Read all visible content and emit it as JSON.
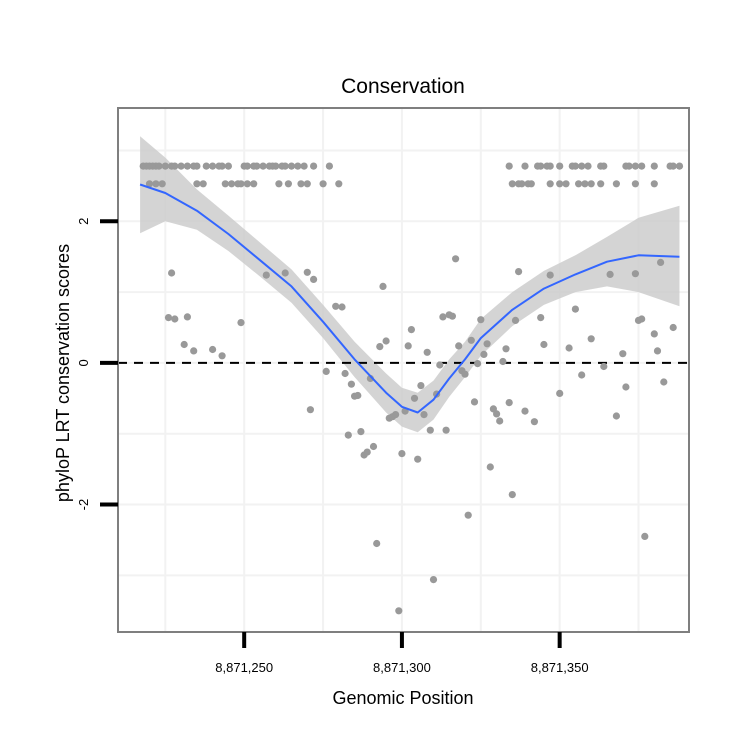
{
  "chart_data": {
    "type": "scatter",
    "title": "Conservation",
    "xlabel": "Genomic Position",
    "ylabel": "phyloP LRT conservation scores",
    "xlim": [
      8871210,
      8871391
    ],
    "ylim": [
      -3.8,
      3.6
    ],
    "x_ticks": [
      8871250,
      8871300,
      8871350
    ],
    "x_tick_labels": [
      "8,871,250",
      "8,871,300",
      "8,871,350"
    ],
    "y_ticks": [
      -2,
      0,
      2
    ],
    "y_tick_labels": [
      "-2",
      "0",
      "2"
    ],
    "grid": true,
    "reference_line": {
      "y": 0,
      "style": "dashed"
    },
    "colors": {
      "points": "#999999",
      "smooth": "#3366ff",
      "ribbon": "#cccccc",
      "panel_border": "#7f7f7f",
      "grid": "#f2f2f2",
      "reference_line": "#000000",
      "axis": "#000000"
    },
    "points": [
      {
        "x": 8871218,
        "y": 2.78
      },
      {
        "x": 8871219,
        "y": 2.78
      },
      {
        "x": 8871220,
        "y": 2.78
      },
      {
        "x": 8871221,
        "y": 2.78
      },
      {
        "x": 8871222,
        "y": 2.78
      },
      {
        "x": 8871223,
        "y": 2.78
      },
      {
        "x": 8871225,
        "y": 2.78
      },
      {
        "x": 8871227,
        "y": 2.78
      },
      {
        "x": 8871228,
        "y": 2.78
      },
      {
        "x": 8871230,
        "y": 2.78
      },
      {
        "x": 8871232,
        "y": 2.78
      },
      {
        "x": 8871234,
        "y": 2.78
      },
      {
        "x": 8871235,
        "y": 2.78
      },
      {
        "x": 8871238,
        "y": 2.78
      },
      {
        "x": 8871240,
        "y": 2.78
      },
      {
        "x": 8871242,
        "y": 2.78
      },
      {
        "x": 8871243,
        "y": 2.78
      },
      {
        "x": 8871245,
        "y": 2.78
      },
      {
        "x": 8871250,
        "y": 2.78
      },
      {
        "x": 8871251,
        "y": 2.78
      },
      {
        "x": 8871253,
        "y": 2.78
      },
      {
        "x": 8871254,
        "y": 2.78
      },
      {
        "x": 8871256,
        "y": 2.78
      },
      {
        "x": 8871258,
        "y": 2.78
      },
      {
        "x": 8871259,
        "y": 2.78
      },
      {
        "x": 8871260,
        "y": 2.78
      },
      {
        "x": 8871262,
        "y": 2.78
      },
      {
        "x": 8871263,
        "y": 2.78
      },
      {
        "x": 8871265,
        "y": 2.78
      },
      {
        "x": 8871267,
        "y": 2.78
      },
      {
        "x": 8871269,
        "y": 2.78
      },
      {
        "x": 8871272,
        "y": 2.78
      },
      {
        "x": 8871277,
        "y": 2.78
      },
      {
        "x": 8871220,
        "y": 2.53
      },
      {
        "x": 8871222,
        "y": 2.53
      },
      {
        "x": 8871224,
        "y": 2.53
      },
      {
        "x": 8871235,
        "y": 2.53
      },
      {
        "x": 8871237,
        "y": 2.53
      },
      {
        "x": 8871244,
        "y": 2.53
      },
      {
        "x": 8871246,
        "y": 2.53
      },
      {
        "x": 8871248,
        "y": 2.53
      },
      {
        "x": 8871249,
        "y": 2.53
      },
      {
        "x": 8871251,
        "y": 2.53
      },
      {
        "x": 8871253,
        "y": 2.53
      },
      {
        "x": 8871261,
        "y": 2.53
      },
      {
        "x": 8871264,
        "y": 2.53
      },
      {
        "x": 8871268,
        "y": 2.53
      },
      {
        "x": 8871270,
        "y": 2.53
      },
      {
        "x": 8871275,
        "y": 2.53
      },
      {
        "x": 8871280,
        "y": 2.53
      },
      {
        "x": 8871334,
        "y": 2.78
      },
      {
        "x": 8871339,
        "y": 2.78
      },
      {
        "x": 8871343,
        "y": 2.78
      },
      {
        "x": 8871344,
        "y": 2.78
      },
      {
        "x": 8871346,
        "y": 2.78
      },
      {
        "x": 8871347,
        "y": 2.78
      },
      {
        "x": 8871350,
        "y": 2.78
      },
      {
        "x": 8871354,
        "y": 2.78
      },
      {
        "x": 8871355,
        "y": 2.78
      },
      {
        "x": 8871357,
        "y": 2.78
      },
      {
        "x": 8871359,
        "y": 2.78
      },
      {
        "x": 8871363,
        "y": 2.78
      },
      {
        "x": 8871364,
        "y": 2.78
      },
      {
        "x": 8871371,
        "y": 2.78
      },
      {
        "x": 8871372,
        "y": 2.78
      },
      {
        "x": 8871374,
        "y": 2.78
      },
      {
        "x": 8871376,
        "y": 2.78
      },
      {
        "x": 8871380,
        "y": 2.78
      },
      {
        "x": 8871385,
        "y": 2.78
      },
      {
        "x": 8871386,
        "y": 2.78
      },
      {
        "x": 8871388,
        "y": 2.78
      },
      {
        "x": 8871335,
        "y": 2.53
      },
      {
        "x": 8871337,
        "y": 2.53
      },
      {
        "x": 8871338,
        "y": 2.53
      },
      {
        "x": 8871340,
        "y": 2.53
      },
      {
        "x": 8871341,
        "y": 2.53
      },
      {
        "x": 8871347,
        "y": 2.53
      },
      {
        "x": 8871350,
        "y": 2.53
      },
      {
        "x": 8871352,
        "y": 2.53
      },
      {
        "x": 8871356,
        "y": 2.53
      },
      {
        "x": 8871358,
        "y": 2.53
      },
      {
        "x": 8871360,
        "y": 2.53
      },
      {
        "x": 8871363,
        "y": 2.53
      },
      {
        "x": 8871368,
        "y": 2.53
      },
      {
        "x": 8871374,
        "y": 2.53
      },
      {
        "x": 8871380,
        "y": 2.53
      },
      {
        "x": 8871227,
        "y": 1.27
      },
      {
        "x": 8871226,
        "y": 0.64
      },
      {
        "x": 8871228,
        "y": 0.62
      },
      {
        "x": 8871232,
        "y": 0.65
      },
      {
        "x": 8871231,
        "y": 0.26
      },
      {
        "x": 8871234,
        "y": 0.17
      },
      {
        "x": 8871240,
        "y": 0.19
      },
      {
        "x": 8871243,
        "y": 0.1
      },
      {
        "x": 8871249,
        "y": 0.57
      },
      {
        "x": 8871257,
        "y": 1.24
      },
      {
        "x": 8871263,
        "y": 1.27
      },
      {
        "x": 8871270,
        "y": 1.28
      },
      {
        "x": 8871272,
        "y": 1.18
      },
      {
        "x": 8871276,
        "y": -0.12
      },
      {
        "x": 8871271,
        "y": -0.66
      },
      {
        "x": 8871279,
        "y": 0.8
      },
      {
        "x": 8871281,
        "y": 0.79
      },
      {
        "x": 8871282,
        "y": -0.15
      },
      {
        "x": 8871283,
        "y": -1.02
      },
      {
        "x": 8871284,
        "y": -0.3
      },
      {
        "x": 8871285,
        "y": -0.47
      },
      {
        "x": 8871286,
        "y": -0.46
      },
      {
        "x": 8871287,
        "y": -0.97
      },
      {
        "x": 8871288,
        "y": -1.3
      },
      {
        "x": 8871289,
        "y": -1.26
      },
      {
        "x": 8871290,
        "y": -0.22
      },
      {
        "x": 8871291,
        "y": -1.18
      },
      {
        "x": 8871292,
        "y": -2.55
      },
      {
        "x": 8871293,
        "y": 0.23
      },
      {
        "x": 8871294,
        "y": 1.08
      },
      {
        "x": 8871296,
        "y": -0.78
      },
      {
        "x": 8871297,
        "y": -0.76
      },
      {
        "x": 8871298,
        "y": -0.73
      },
      {
        "x": 8871299,
        "y": -3.5
      },
      {
        "x": 8871300,
        "y": -1.28
      },
      {
        "x": 8871301,
        "y": -0.68
      },
      {
        "x": 8871302,
        "y": 0.24
      },
      {
        "x": 8871303,
        "y": 0.47
      },
      {
        "x": 8871295,
        "y": 0.31
      },
      {
        "x": 8871304,
        "y": -0.5
      },
      {
        "x": 8871305,
        "y": -1.36
      },
      {
        "x": 8871306,
        "y": -0.32
      },
      {
        "x": 8871307,
        "y": -0.73
      },
      {
        "x": 8871308,
        "y": 0.15
      },
      {
        "x": 8871309,
        "y": -0.95
      },
      {
        "x": 8871310,
        "y": -3.06
      },
      {
        "x": 8871311,
        "y": -0.44
      },
      {
        "x": 8871312,
        "y": -0.03
      },
      {
        "x": 8871313,
        "y": 0.65
      },
      {
        "x": 8871314,
        "y": -0.95
      },
      {
        "x": 8871315,
        "y": 0.68
      },
      {
        "x": 8871316,
        "y": 0.66
      },
      {
        "x": 8871317,
        "y": 1.47
      },
      {
        "x": 8871318,
        "y": 0.24
      },
      {
        "x": 8871319,
        "y": -0.11
      },
      {
        "x": 8871320,
        "y": -0.16
      },
      {
        "x": 8871321,
        "y": -2.15
      },
      {
        "x": 8871322,
        "y": 0.32
      },
      {
        "x": 8871323,
        "y": -0.55
      },
      {
        "x": 8871324,
        "y": -0.01
      },
      {
        "x": 8871325,
        "y": 0.61
      },
      {
        "x": 8871326,
        "y": 0.12
      },
      {
        "x": 8871327,
        "y": 0.27
      },
      {
        "x": 8871328,
        "y": -1.47
      },
      {
        "x": 8871329,
        "y": -0.65
      },
      {
        "x": 8871330,
        "y": -0.72
      },
      {
        "x": 8871331,
        "y": -0.82
      },
      {
        "x": 8871332,
        "y": 0.02
      },
      {
        "x": 8871333,
        "y": 0.2
      },
      {
        "x": 8871334,
        "y": -0.56
      },
      {
        "x": 8871335,
        "y": -1.86
      },
      {
        "x": 8871336,
        "y": 0.6
      },
      {
        "x": 8871337,
        "y": 1.29
      },
      {
        "x": 8871339,
        "y": -0.68
      },
      {
        "x": 8871342,
        "y": -0.83
      },
      {
        "x": 8871344,
        "y": 0.64
      },
      {
        "x": 8871345,
        "y": 0.26
      },
      {
        "x": 8871347,
        "y": 1.24
      },
      {
        "x": 8871350,
        "y": -0.43
      },
      {
        "x": 8871353,
        "y": 0.21
      },
      {
        "x": 8871355,
        "y": 0.76
      },
      {
        "x": 8871357,
        "y": -0.17
      },
      {
        "x": 8871360,
        "y": 0.34
      },
      {
        "x": 8871364,
        "y": -0.05
      },
      {
        "x": 8871366,
        "y": 1.25
      },
      {
        "x": 8871368,
        "y": -0.75
      },
      {
        "x": 8871370,
        "y": 0.13
      },
      {
        "x": 8871371,
        "y": -0.34
      },
      {
        "x": 8871374,
        "y": 1.26
      },
      {
        "x": 8871375,
        "y": 0.6
      },
      {
        "x": 8871376,
        "y": 0.62
      },
      {
        "x": 8871377,
        "y": -2.45
      },
      {
        "x": 8871380,
        "y": 0.41
      },
      {
        "x": 8871381,
        "y": 0.17
      },
      {
        "x": 8871382,
        "y": 1.42
      },
      {
        "x": 8871383,
        "y": -0.27
      },
      {
        "x": 8871386,
        "y": 0.5
      }
    ],
    "smooth": {
      "x": [
        8871217,
        8871225,
        8871235,
        8871245,
        8871255,
        8871265,
        8871275,
        8871285,
        8871295,
        8871300,
        8871305,
        8871310,
        8871315,
        8871320,
        8871325,
        8871335,
        8871345,
        8871355,
        8871365,
        8871375,
        8871388
      ],
      "y": [
        2.52,
        2.4,
        2.15,
        1.82,
        1.45,
        1.08,
        0.58,
        0.05,
        -0.42,
        -0.62,
        -0.7,
        -0.52,
        -0.22,
        0.05,
        0.35,
        0.75,
        1.05,
        1.25,
        1.43,
        1.52,
        1.5
      ],
      "lower": [
        1.83,
        2.0,
        1.88,
        1.58,
        1.22,
        0.85,
        0.35,
        -0.2,
        -0.7,
        -0.9,
        -0.98,
        -0.8,
        -0.48,
        -0.2,
        0.1,
        0.52,
        0.82,
        1.0,
        1.08,
        1.0,
        0.8
      ],
      "upper": [
        3.2,
        2.9,
        2.45,
        2.08,
        1.7,
        1.32,
        0.82,
        0.3,
        -0.15,
        -0.35,
        -0.42,
        -0.25,
        0.05,
        0.3,
        0.62,
        1.0,
        1.3,
        1.52,
        1.78,
        2.05,
        2.22
      ]
    }
  }
}
